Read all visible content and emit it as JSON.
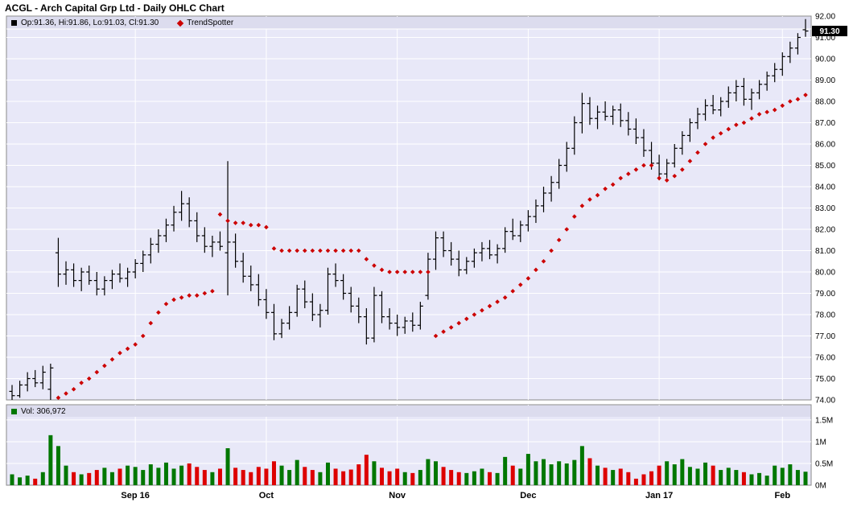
{
  "title": "ACGL - Arch Capital Grp Ltd - Daily OHLC Chart",
  "legend": {
    "ohlc_label": "Op:91.36, Hi:91.86, Lo:91.03, Cl:91.30",
    "trend_label": "TrendSpotter",
    "volume_label": "Vol: 306,972"
  },
  "last_price_label": "91.30",
  "colors": {
    "panel_bg": "#e8e8f8",
    "panel_border": "#888888",
    "grid": "#ffffff",
    "legend_strip": "#dcdcee",
    "ohlc_bar": "#000000",
    "trend_dot": "#cc0000",
    "vol_up": "#007700",
    "vol_down": "#dd0000",
    "axis_text": "#000000",
    "price_tag_bg": "#000000",
    "price_tag_text": "#ffffff"
  },
  "chart_data": {
    "type": "ohlc",
    "title": "ACGL - Arch Capital Grp Ltd - Daily OHLC Chart",
    "series_names": [
      "OHLC",
      "TrendSpotter",
      "Volume"
    ],
    "legend_position": "top-left",
    "grid": true,
    "price_axis": {
      "min": 74,
      "max": 92,
      "step": 1
    },
    "volume_axis": {
      "min": 0,
      "max": 1.85,
      "ticks": [
        {
          "v": 0,
          "label": "0M"
        },
        {
          "v": 0.5,
          "label": "0.5M"
        },
        {
          "v": 1,
          "label": "1M"
        },
        {
          "v": 1.5,
          "label": "1.5M"
        }
      ]
    },
    "last_price": 91.3,
    "last_volume": 306972,
    "x_ticks": [
      {
        "label": "Sep 16",
        "index": 16
      },
      {
        "label": "Oct",
        "index": 33
      },
      {
        "label": "Nov",
        "index": 50
      },
      {
        "label": "Dec",
        "index": 67
      },
      {
        "label": "Jan 17",
        "index": 84
      },
      {
        "label": "Feb",
        "index": 100
      }
    ],
    "ohlc": [
      [
        74.4,
        74.7,
        74.0,
        74.2
      ],
      [
        74.2,
        74.9,
        74.1,
        74.7
      ],
      [
        74.7,
        75.3,
        74.4,
        75.0
      ],
      [
        75.0,
        75.4,
        74.6,
        74.8
      ],
      [
        74.8,
        75.6,
        74.5,
        75.3
      ],
      [
        74.5,
        75.7,
        74.0,
        75.5
      ],
      [
        80.9,
        81.6,
        79.3,
        79.9
      ],
      [
        79.9,
        80.5,
        79.4,
        80.1
      ],
      [
        80.1,
        80.4,
        79.3,
        79.6
      ],
      [
        79.6,
        80.2,
        79.1,
        80.0
      ],
      [
        80.0,
        80.3,
        79.4,
        79.6
      ],
      [
        79.6,
        80.0,
        78.9,
        79.2
      ],
      [
        79.2,
        79.8,
        78.9,
        79.6
      ],
      [
        79.6,
        80.1,
        79.2,
        79.9
      ],
      [
        79.9,
        80.4,
        79.5,
        79.7
      ],
      [
        79.7,
        80.2,
        79.3,
        80.0
      ],
      [
        80.0,
        80.6,
        79.7,
        80.4
      ],
      [
        80.4,
        81.0,
        80.0,
        80.8
      ],
      [
        80.8,
        81.6,
        80.4,
        81.3
      ],
      [
        81.3,
        82.0,
        80.9,
        81.7
      ],
      [
        81.7,
        82.5,
        81.4,
        82.2
      ],
      [
        82.2,
        83.1,
        81.9,
        82.8
      ],
      [
        82.8,
        83.8,
        82.4,
        83.2
      ],
      [
        83.2,
        83.5,
        82.1,
        82.4
      ],
      [
        82.4,
        82.8,
        81.4,
        81.7
      ],
      [
        81.7,
        82.1,
        80.9,
        81.2
      ],
      [
        81.2,
        81.7,
        80.7,
        81.4
      ],
      [
        81.4,
        81.9,
        81.0,
        81.2
      ],
      [
        80.9,
        85.2,
        78.9,
        81.4
      ],
      [
        81.4,
        81.8,
        80.2,
        80.5
      ],
      [
        80.5,
        80.9,
        79.5,
        79.8
      ],
      [
        79.8,
        80.3,
        79.1,
        79.4
      ],
      [
        79.4,
        79.9,
        78.4,
        78.7
      ],
      [
        78.7,
        79.2,
        77.8,
        78.1
      ],
      [
        78.1,
        78.5,
        76.8,
        77.1
      ],
      [
        77.1,
        77.8,
        76.9,
        77.6
      ],
      [
        77.6,
        78.4,
        77.3,
        78.1
      ],
      [
        78.1,
        79.4,
        77.9,
        79.2
      ],
      [
        79.2,
        79.6,
        78.3,
        78.6
      ],
      [
        78.6,
        79.0,
        77.7,
        78.0
      ],
      [
        78.0,
        78.5,
        77.4,
        78.2
      ],
      [
        78.2,
        80.2,
        78.0,
        79.9
      ],
      [
        79.9,
        80.4,
        79.3,
        79.6
      ],
      [
        79.6,
        79.9,
        78.7,
        79.0
      ],
      [
        79.0,
        79.3,
        78.1,
        78.4
      ],
      [
        78.4,
        78.8,
        77.6,
        77.9
      ],
      [
        77.9,
        78.3,
        76.6,
        76.9
      ],
      [
        76.9,
        79.3,
        76.7,
        78.9
      ],
      [
        78.9,
        79.1,
        77.6,
        77.9
      ],
      [
        77.9,
        78.3,
        77.3,
        77.6
      ],
      [
        77.6,
        78.0,
        77.0,
        77.4
      ],
      [
        77.4,
        77.9,
        77.1,
        77.7
      ],
      [
        77.7,
        78.1,
        77.2,
        77.5
      ],
      [
        77.5,
        78.6,
        77.3,
        78.4
      ],
      [
        78.9,
        80.9,
        78.7,
        80.6
      ],
      [
        80.6,
        81.9,
        80.1,
        81.6
      ],
      [
        81.6,
        81.9,
        80.7,
        81.0
      ],
      [
        81.0,
        81.4,
        80.3,
        80.6
      ],
      [
        80.6,
        81.0,
        79.8,
        80.1
      ],
      [
        80.1,
        80.7,
        79.9,
        80.5
      ],
      [
        80.5,
        81.1,
        80.2,
        80.9
      ],
      [
        80.9,
        81.4,
        80.5,
        81.1
      ],
      [
        81.1,
        81.5,
        80.6,
        80.8
      ],
      [
        80.8,
        81.3,
        80.4,
        81.1
      ],
      [
        81.1,
        82.1,
        80.9,
        81.9
      ],
      [
        81.9,
        82.5,
        81.5,
        81.7
      ],
      [
        81.7,
        82.4,
        81.4,
        82.2
      ],
      [
        82.2,
        82.9,
        81.9,
        82.6
      ],
      [
        82.6,
        83.4,
        82.3,
        83.1
      ],
      [
        83.1,
        84.0,
        82.8,
        83.7
      ],
      [
        83.7,
        84.5,
        83.3,
        84.2
      ],
      [
        84.2,
        85.3,
        83.9,
        85.0
      ],
      [
        85.0,
        86.1,
        84.7,
        85.8
      ],
      [
        85.8,
        87.3,
        85.5,
        87.0
      ],
      [
        87.0,
        88.4,
        86.5,
        87.9
      ],
      [
        87.9,
        88.2,
        86.9,
        87.2
      ],
      [
        87.2,
        87.8,
        86.7,
        87.5
      ],
      [
        87.5,
        88.0,
        87.1,
        87.3
      ],
      [
        87.3,
        87.8,
        86.9,
        87.6
      ],
      [
        87.6,
        87.9,
        86.8,
        87.1
      ],
      [
        87.1,
        87.5,
        86.4,
        86.7
      ],
      [
        86.7,
        87.2,
        86.0,
        86.3
      ],
      [
        86.3,
        86.7,
        85.4,
        85.7
      ],
      [
        85.7,
        86.1,
        84.8,
        85.1
      ],
      [
        85.1,
        85.5,
        84.3,
        84.6
      ],
      [
        84.6,
        85.3,
        84.4,
        85.1
      ],
      [
        85.1,
        86.0,
        84.9,
        85.8
      ],
      [
        85.8,
        86.6,
        85.5,
        86.4
      ],
      [
        86.4,
        87.2,
        86.1,
        87.0
      ],
      [
        87.0,
        87.7,
        86.7,
        87.4
      ],
      [
        87.4,
        88.1,
        87.1,
        87.8
      ],
      [
        87.8,
        88.3,
        87.4,
        87.6
      ],
      [
        87.6,
        88.2,
        87.3,
        88.0
      ],
      [
        88.0,
        88.7,
        87.7,
        88.4
      ],
      [
        88.4,
        89.0,
        88.0,
        88.7
      ],
      [
        88.7,
        89.1,
        87.8,
        88.1
      ],
      [
        88.1,
        88.6,
        87.6,
        88.4
      ],
      [
        88.4,
        89.0,
        88.1,
        88.8
      ],
      [
        88.8,
        89.4,
        88.5,
        89.2
      ],
      [
        89.2,
        89.8,
        88.9,
        89.5
      ],
      [
        89.5,
        90.3,
        89.2,
        90.1
      ],
      [
        90.1,
        90.8,
        89.8,
        90.5
      ],
      [
        90.5,
        91.2,
        90.2,
        91.0
      ],
      [
        91.36,
        91.86,
        91.03,
        91.3
      ]
    ],
    "trendspotter": [
      null,
      null,
      null,
      null,
      null,
      null,
      74.1,
      74.3,
      74.5,
      74.8,
      75.0,
      75.3,
      75.6,
      75.9,
      76.2,
      76.4,
      76.6,
      77.0,
      77.6,
      78.1,
      78.5,
      78.7,
      78.8,
      78.9,
      78.9,
      79.0,
      79.1,
      82.7,
      82.4,
      82.3,
      82.3,
      82.2,
      82.2,
      82.1,
      81.1,
      81.0,
      81.0,
      81.0,
      81.0,
      81.0,
      81.0,
      81.0,
      81.0,
      81.0,
      81.0,
      81.0,
      80.6,
      80.3,
      80.1,
      80.0,
      80.0,
      80.0,
      80.0,
      80.0,
      80.0,
      77.0,
      77.2,
      77.4,
      77.6,
      77.8,
      78.0,
      78.2,
      78.4,
      78.6,
      78.8,
      79.1,
      79.4,
      79.7,
      80.1,
      80.5,
      81.0,
      81.5,
      82.0,
      82.6,
      83.1,
      83.4,
      83.6,
      83.9,
      84.1,
      84.4,
      84.6,
      84.8,
      85.0,
      85.0,
      84.4,
      84.3,
      84.5,
      84.8,
      85.2,
      85.6,
      86.0,
      86.3,
      86.5,
      86.7,
      86.9,
      87.0,
      87.2,
      87.4,
      87.5,
      87.6,
      87.8,
      88.0,
      88.1,
      88.3
    ],
    "volume": [
      0.25,
      0.18,
      0.22,
      0.15,
      0.3,
      1.15,
      0.9,
      0.45,
      0.3,
      0.25,
      0.28,
      0.35,
      0.4,
      0.3,
      0.38,
      0.45,
      0.42,
      0.35,
      0.48,
      0.4,
      0.52,
      0.38,
      0.45,
      0.5,
      0.42,
      0.35,
      0.3,
      0.38,
      0.85,
      0.4,
      0.35,
      0.3,
      0.42,
      0.38,
      0.55,
      0.45,
      0.35,
      0.58,
      0.42,
      0.35,
      0.3,
      0.52,
      0.38,
      0.32,
      0.36,
      0.48,
      0.7,
      0.55,
      0.4,
      0.32,
      0.38,
      0.3,
      0.28,
      0.35,
      0.6,
      0.55,
      0.42,
      0.35,
      0.3,
      0.28,
      0.32,
      0.38,
      0.3,
      0.28,
      0.65,
      0.45,
      0.38,
      0.72,
      0.55,
      0.6,
      0.48,
      0.55,
      0.5,
      0.58,
      0.9,
      0.62,
      0.45,
      0.4,
      0.35,
      0.38,
      0.3,
      0.15,
      0.25,
      0.32,
      0.45,
      0.55,
      0.48,
      0.6,
      0.42,
      0.38,
      0.52,
      0.45,
      0.35,
      0.4,
      0.35,
      0.3,
      0.25,
      0.28,
      0.22,
      0.45,
      0.4,
      0.48,
      0.35,
      0.31
    ]
  }
}
